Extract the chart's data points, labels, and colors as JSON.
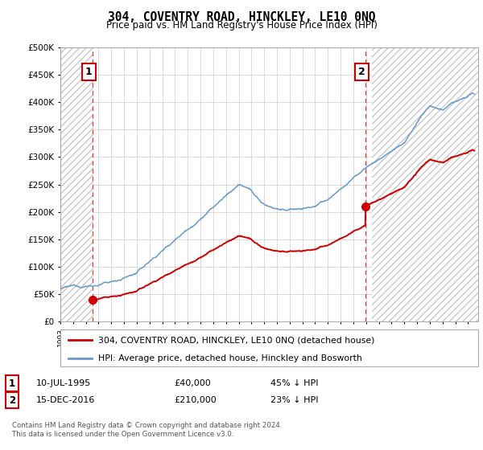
{
  "title": "304, COVENTRY ROAD, HINCKLEY, LE10 0NQ",
  "subtitle": "Price paid vs. HM Land Registry's House Price Index (HPI)",
  "ylim": [
    0,
    500000
  ],
  "xlim_start": 1993.0,
  "xlim_end": 2025.8,
  "sale1_date": 1995.53,
  "sale1_price": 40000,
  "sale2_date": 2016.96,
  "sale2_price": 210000,
  "legend_line1": "304, COVENTRY ROAD, HINCKLEY, LE10 0NQ (detached house)",
  "legend_line2": "HPI: Average price, detached house, Hinckley and Bosworth",
  "sale_color": "#cc0000",
  "hpi_color": "#6699cc",
  "vline_color": "#dd4444",
  "hatch_color": "#c8c8c8",
  "grid_color": "#cccccc",
  "footer": "Contains HM Land Registry data © Crown copyright and database right 2024.\nThis data is licensed under the Open Government Licence v3.0."
}
